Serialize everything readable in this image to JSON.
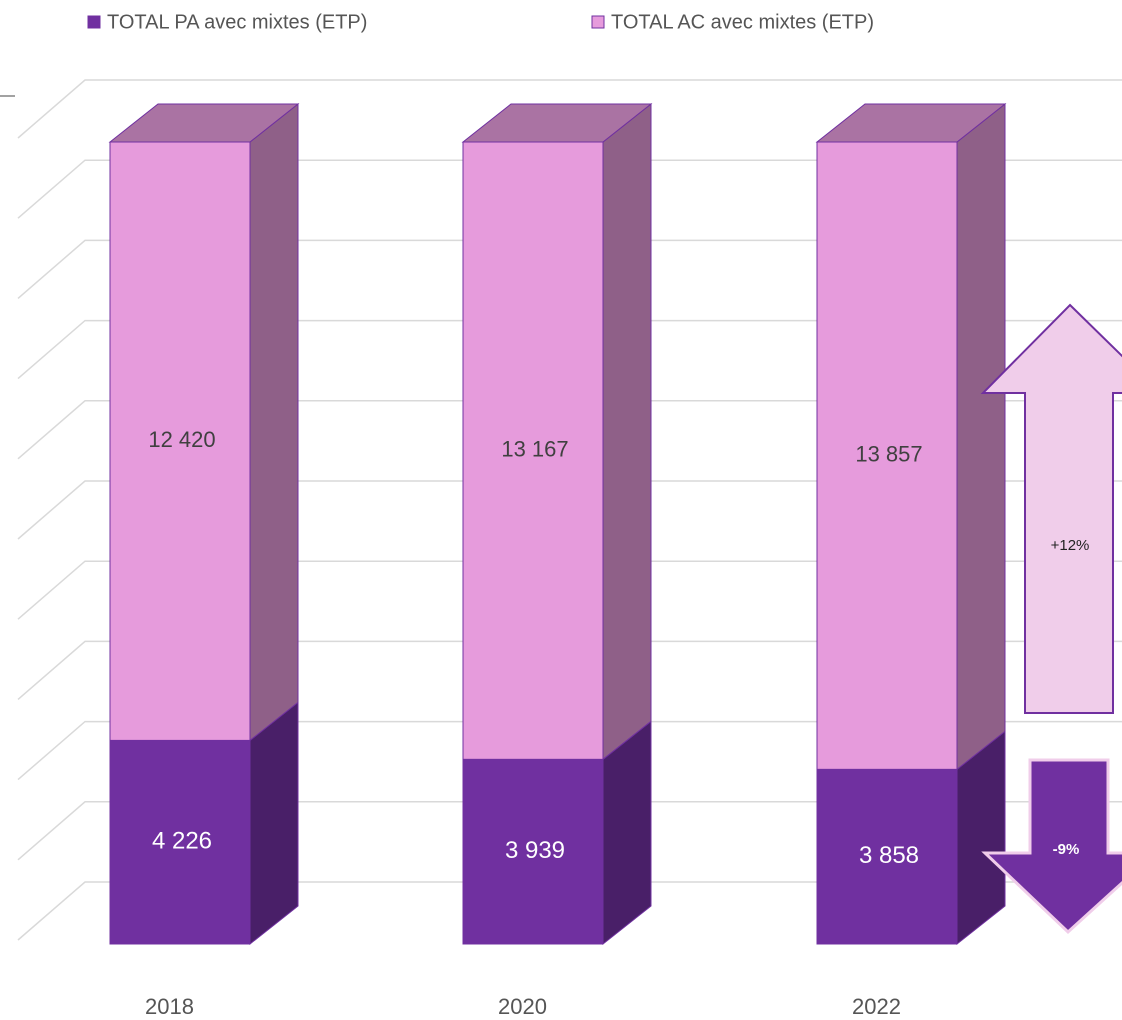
{
  "chart_data": {
    "type": "bar",
    "stacking": "percent",
    "categories": [
      "2018",
      "2020",
      "2022"
    ],
    "series": [
      {
        "name": "TOTAL PA avec mixtes (ETP)",
        "color": "#7030a0",
        "values": [
          4226,
          3939,
          3858
        ],
        "value_labels": [
          "4 226",
          "3 939",
          "3 858"
        ]
      },
      {
        "name": "TOTAL AC avec mixtes (ETP)",
        "color": "#e69bdc",
        "values": [
          12420,
          13167,
          13857
        ],
        "value_labels": [
          "12 420",
          "13 167",
          "13 857"
        ]
      }
    ],
    "ylim": [
      0,
      100
    ],
    "yticks": [
      0,
      10,
      20,
      30,
      40,
      50,
      60,
      70,
      80,
      90,
      100
    ],
    "grid": true,
    "annotations": [
      "+12%",
      "-9%"
    ]
  }
}
